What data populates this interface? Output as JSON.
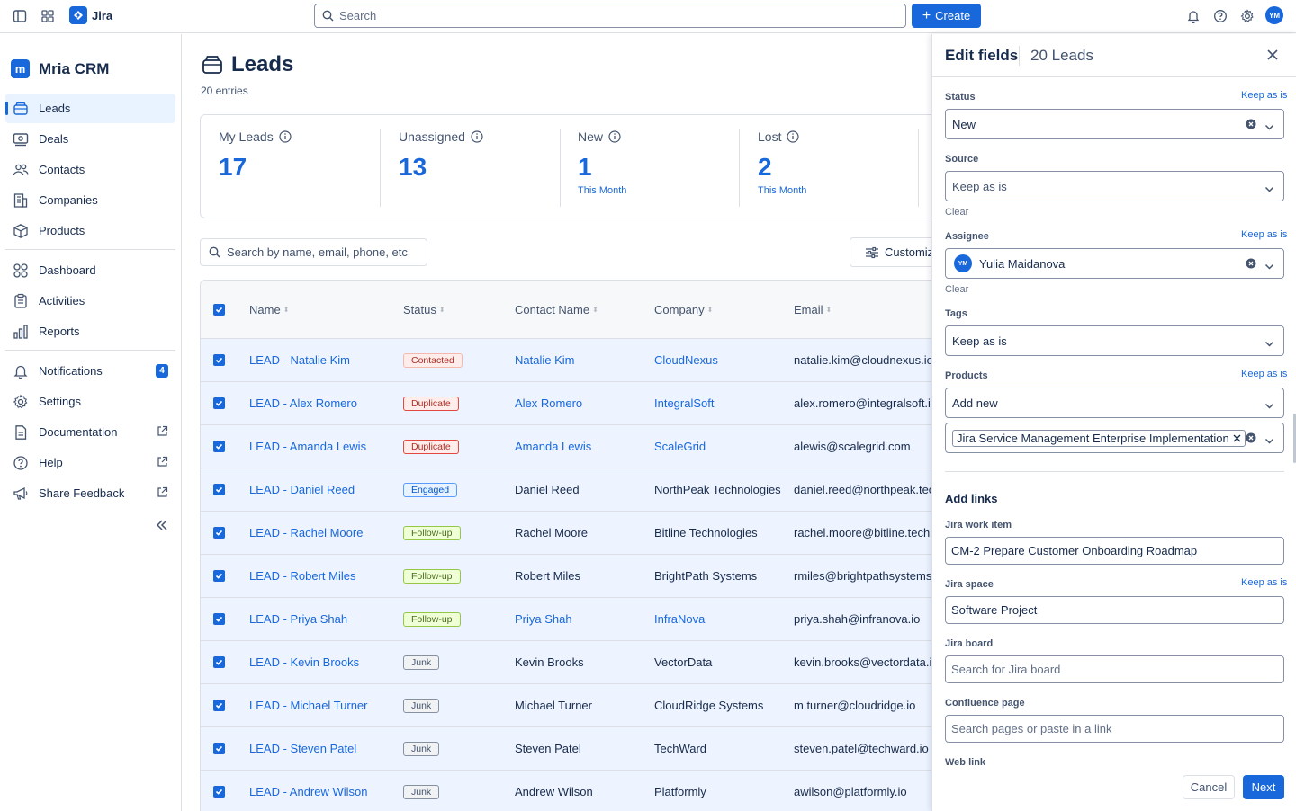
{
  "topbar": {
    "app_name": "Jira",
    "search_placeholder": "Search",
    "create_label": "Create",
    "avatar_initials": "YM"
  },
  "sidebar": {
    "app_title": "Mria CRM",
    "app_logo_letter": "m",
    "items": [
      {
        "label": "Leads",
        "icon": "inbox-icon"
      },
      {
        "label": "Deals",
        "icon": "deals-icon"
      },
      {
        "label": "Contacts",
        "icon": "contacts-icon"
      },
      {
        "label": "Companies",
        "icon": "building-icon"
      },
      {
        "label": "Products",
        "icon": "box-icon"
      },
      {
        "label": "Dashboard",
        "icon": "dashboard-icon"
      },
      {
        "label": "Activities",
        "icon": "clipboard-icon"
      },
      {
        "label": "Reports",
        "icon": "chart-icon"
      },
      {
        "label": "Notifications",
        "icon": "bell-icon",
        "badge": "4"
      },
      {
        "label": "Settings",
        "icon": "gear-icon"
      },
      {
        "label": "Documentation",
        "icon": "document-icon"
      },
      {
        "label": "Help",
        "icon": "help-icon"
      },
      {
        "label": "Share Feedback",
        "icon": "megaphone-icon"
      }
    ]
  },
  "main": {
    "title": "Leads",
    "entries": "20 entries",
    "stats": [
      {
        "label": "My Leads",
        "value": "17",
        "sub": ""
      },
      {
        "label": "Unassigned",
        "value": "13",
        "sub": ""
      },
      {
        "label": "New",
        "value": "1",
        "sub": "This Month"
      },
      {
        "label": "Lost",
        "value": "2",
        "sub": "This Month"
      }
    ],
    "search_placeholder": "Search by name, email, phone, etc",
    "customize_label": "Customize",
    "table": {
      "columns": [
        "Name",
        "Status",
        "Contact Name",
        "Company",
        "Email"
      ],
      "rows": [
        {
          "name": "LEAD - Natalie Kim",
          "status": "Contacted",
          "status_type": "contacted",
          "contact": "Natalie Kim",
          "contact_link": true,
          "company": "CloudNexus",
          "company_link": true,
          "email": "natalie.kim@cloudnexus.io"
        },
        {
          "name": "LEAD - Alex Romero",
          "status": "Duplicate",
          "status_type": "duplicate",
          "contact": "Alex Romero",
          "contact_link": true,
          "company": "IntegralSoft",
          "company_link": true,
          "email": "alex.romero@integralsoft.io"
        },
        {
          "name": "LEAD - Amanda Lewis",
          "status": "Duplicate",
          "status_type": "duplicate",
          "contact": "Amanda Lewis",
          "contact_link": true,
          "company": "ScaleGrid",
          "company_link": true,
          "email": "alewis@scalegrid.com"
        },
        {
          "name": "LEAD - Daniel Reed",
          "status": "Engaged",
          "status_type": "engaged",
          "contact": "Daniel Reed",
          "contact_link": false,
          "company": "NorthPeak Technologies",
          "company_link": false,
          "email": "daniel.reed@northpeak.tech"
        },
        {
          "name": "LEAD - Rachel Moore",
          "status": "Follow-up",
          "status_type": "followup",
          "contact": "Rachel Moore",
          "contact_link": false,
          "company": "Bitline Technologies",
          "company_link": false,
          "email": "rachel.moore@bitline.tech"
        },
        {
          "name": "LEAD - Robert Miles",
          "status": "Follow-up",
          "status_type": "followup",
          "contact": "Robert Miles",
          "contact_link": false,
          "company": "BrightPath Systems",
          "company_link": false,
          "email": "rmiles@brightpathsystems.c"
        },
        {
          "name": "LEAD - Priya Shah",
          "status": "Follow-up",
          "status_type": "followup",
          "contact": "Priya Shah",
          "contact_link": true,
          "company": "InfraNova",
          "company_link": true,
          "email": "priya.shah@infranova.io"
        },
        {
          "name": "LEAD - Kevin Brooks",
          "status": "Junk",
          "status_type": "junk",
          "contact": "Kevin Brooks",
          "contact_link": false,
          "company": "VectorData",
          "company_link": false,
          "email": "kevin.brooks@vectordata.io"
        },
        {
          "name": "LEAD - Michael Turner",
          "status": "Junk",
          "status_type": "junk",
          "contact": "Michael Turner",
          "contact_link": false,
          "company": "CloudRidge Systems",
          "company_link": false,
          "email": "m.turner@cloudridge.io"
        },
        {
          "name": "LEAD - Steven Patel",
          "status": "Junk",
          "status_type": "junk",
          "contact": "Steven Patel",
          "contact_link": false,
          "company": "TechWard",
          "company_link": false,
          "email": "steven.patel@techward.io"
        },
        {
          "name": "LEAD - Andrew Wilson",
          "status": "Junk",
          "status_type": "junk",
          "contact": "Andrew Wilson",
          "contact_link": false,
          "company": "Platformly",
          "company_link": false,
          "email": "awilson@platformly.io"
        }
      ]
    }
  },
  "panel": {
    "title": "Edit fields",
    "subtitle": "20 Leads",
    "keep_as_is": "Keep as is",
    "clear": "Clear",
    "status": {
      "label": "Status",
      "value": "New"
    },
    "source": {
      "label": "Source",
      "value": "Keep as is"
    },
    "assignee": {
      "label": "Assignee",
      "value": "Yulia Maidanova",
      "initials": "YM"
    },
    "tags": {
      "label": "Tags",
      "value": "Keep as is"
    },
    "products": {
      "label": "Products",
      "value": "Add new",
      "chip": "Jira Service Management Enterprise Implementation"
    },
    "links": {
      "title": "Add links",
      "work_item": {
        "label": "Jira work item",
        "value": "CM-2 Prepare Customer Onboarding Roadmap"
      },
      "space": {
        "label": "Jira space",
        "value": "Software Project"
      },
      "board": {
        "label": "Jira board",
        "placeholder": "Search for Jira board"
      },
      "confluence": {
        "label": "Confluence page",
        "placeholder": "Search pages or paste in a link"
      },
      "web_link": {
        "label": "Web link"
      }
    },
    "cancel_label": "Cancel",
    "next_label": "Next"
  },
  "colors": {
    "accent": "#1868DB",
    "row_selected": "#EDF3FF"
  }
}
